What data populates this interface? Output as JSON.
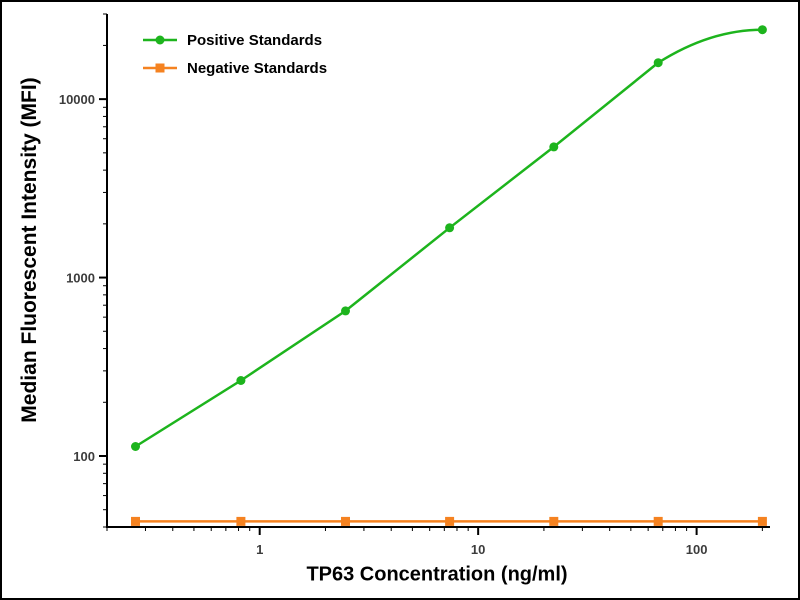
{
  "figure": {
    "background_color": "#ffffff",
    "border_color": "#000000"
  },
  "chart_data": {
    "type": "line",
    "x_scale": "log",
    "y_scale": "log",
    "title": "",
    "xlabel": "TP63 Concentration (ng/ml)",
    "ylabel": "Median Fluorescent Intensity (MFI)",
    "x_ticks": [
      1,
      10,
      100
    ],
    "y_ticks": [
      100,
      1000,
      10000
    ],
    "xlim": [
      0.2,
      210
    ],
    "ylim": [
      40,
      30000
    ],
    "grid": false,
    "legend_position": "top-left",
    "x": [
      0.27,
      0.82,
      2.47,
      7.4,
      22.2,
      66.7,
      200
    ],
    "series": [
      {
        "name": "Positive Standards",
        "color": "#1db41d",
        "marker": "circle",
        "values": [
          113,
          265,
          650,
          1900,
          5400,
          16000,
          24500
        ],
        "saturates_at_end": true
      },
      {
        "name": "Negative Standards",
        "color": "#f58220",
        "marker": "square",
        "values": [
          43,
          43,
          43,
          43,
          43,
          43,
          43
        ],
        "saturates_at_end": false
      }
    ]
  }
}
